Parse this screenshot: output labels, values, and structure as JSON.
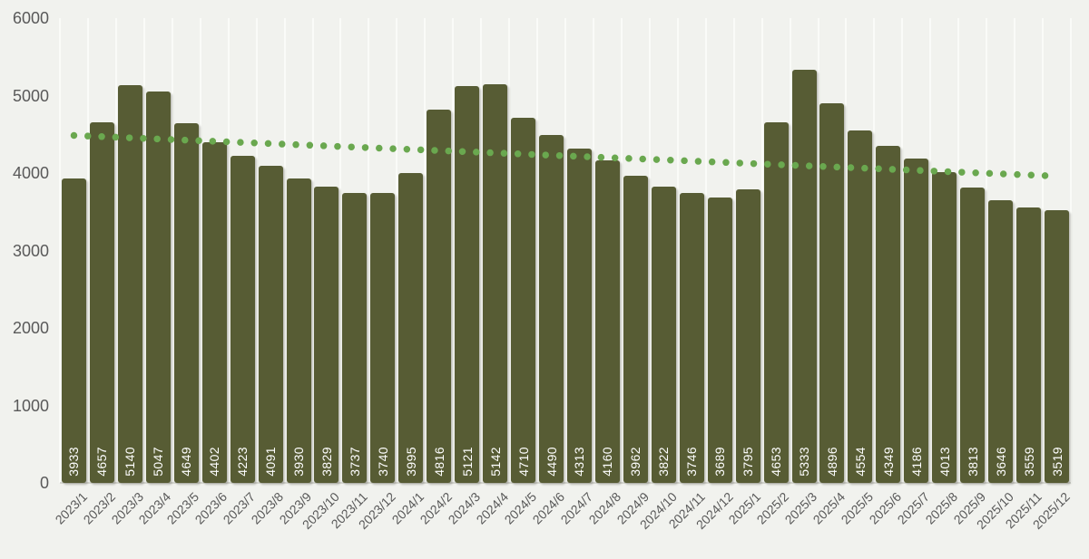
{
  "chart_data": {
    "type": "bar",
    "title": "",
    "xlabel": "",
    "ylabel": "",
    "categories": [
      "2023/1",
      "2023/2",
      "2023/3",
      "2023/4",
      "2023/5",
      "2023/6",
      "2023/7",
      "2023/8",
      "2023/9",
      "2023/10",
      "2023/11",
      "2023/12",
      "2024/1",
      "2024/2",
      "2024/3",
      "2024/4",
      "2024/5",
      "2024/6",
      "2024/7",
      "2024/8",
      "2024/9",
      "2024/10",
      "2024/11",
      "2024/12",
      "2025/1",
      "2025/2",
      "2025/3",
      "2025/4",
      "2025/5",
      "2025/6",
      "2025/7",
      "2025/8",
      "2025/9",
      "2025/10",
      "2025/11",
      "2025/12"
    ],
    "values": [
      3933,
      4657,
      5140,
      5047,
      4649,
      4402,
      4223,
      4091,
      3930,
      3829,
      3737,
      3740,
      3995,
      4816,
      5121,
      5142,
      4710,
      4490,
      4313,
      4160,
      3962,
      3822,
      3746,
      3689,
      3795,
      4653,
      5333,
      4896,
      4554,
      4349,
      4186,
      4013,
      3813,
      3646,
      3559,
      3519
    ],
    "ylim": [
      0,
      6000
    ],
    "yticks": [
      0,
      1000,
      2000,
      3000,
      4000,
      5000,
      6000
    ],
    "grid": "vertical-only",
    "legend": "none",
    "data_labels": {
      "position": "inside-base",
      "rotation": -90,
      "color": "#ffffff"
    },
    "trendline": {
      "type": "linear",
      "style": "dotted",
      "start_value": 4485,
      "end_value": 3960,
      "color": "#6aa84f"
    }
  },
  "colors": {
    "background": "#f1f2ee",
    "bar": "#575c34",
    "trend_dot": "#6aa84f",
    "gridline": "#fafbf8",
    "axis_line": "#d5d6d0",
    "axis_text": "#595959",
    "value_label_text": "#ffffff"
  }
}
